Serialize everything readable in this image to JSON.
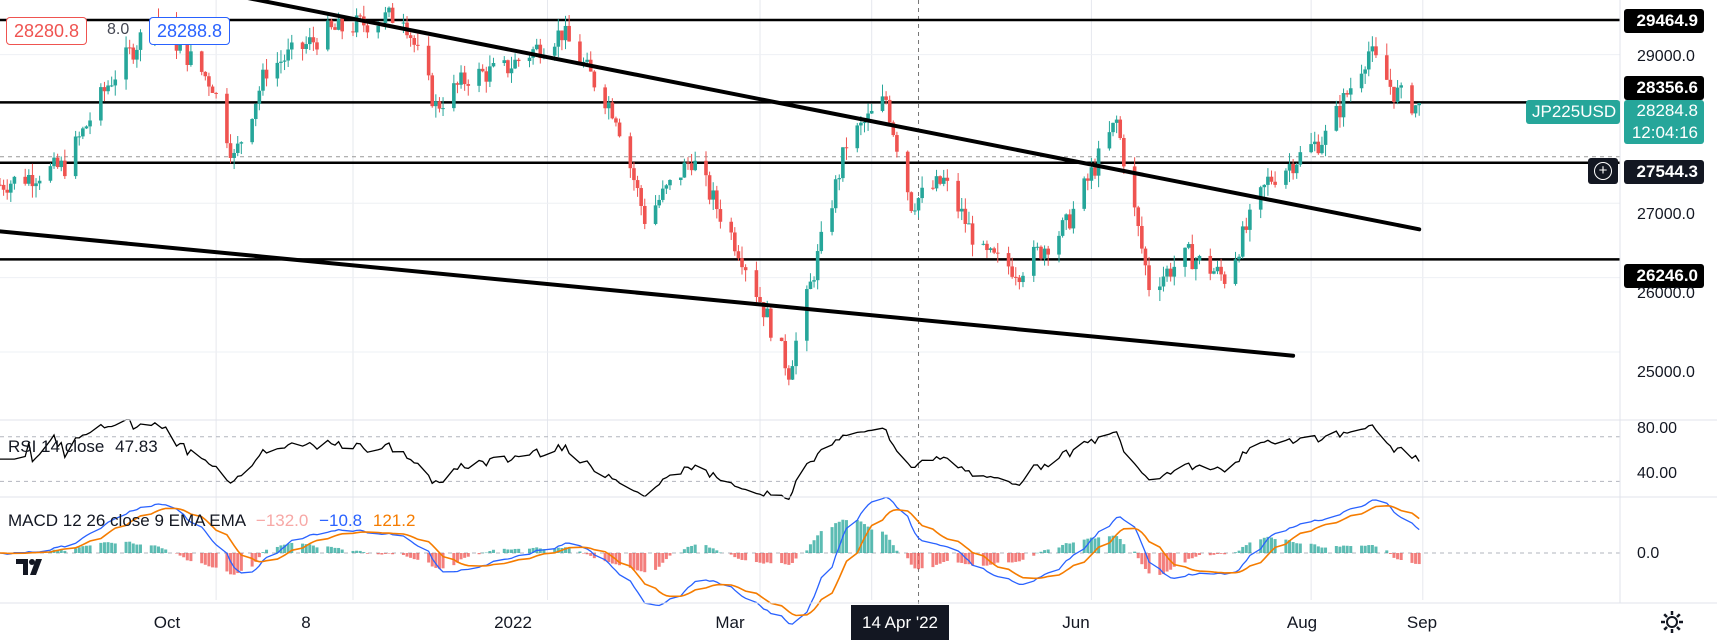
{
  "header": {
    "bid": "28280.8",
    "spread": "8.0",
    "ask": "28288.8"
  },
  "symbol_label": "JP225USD",
  "last_price": "28284.8",
  "countdown": "12:04:16",
  "crosshair_price": "27544.3",
  "crosshair_date": "14 Apr '22",
  "level_labels": [
    "29464.9",
    "28356.6",
    "26246.0"
  ],
  "rsi": {
    "label": "RSI 14 close",
    "value": "47.83",
    "axis_ticks": [
      "80.00",
      "40.00"
    ]
  },
  "macd": {
    "label": "MACD 12 26 close 9 EMA EMA",
    "hist": "−132.0",
    "macd": "−10.8",
    "signal": "121.2",
    "axis_tick": "0.0"
  },
  "colors": {
    "up": "#26a69a",
    "down": "#ef5350",
    "symbol_bg": "#26a69a",
    "rsi_line": "#000000",
    "macd_line": "#2962ff",
    "signal_line": "#f57c00",
    "hist_up": "#26a69a",
    "hist_down": "#ef5350"
  },
  "chart_data": {
    "type": "candlestick",
    "symbol": "JP225USD",
    "x_ticks": [
      "Oct",
      "8",
      "2022",
      "Mar",
      "Apr",
      "Jun",
      "Aug",
      "Sep"
    ],
    "y_ticks": [
      29000.0,
      27000.0,
      26000.0,
      25000.0
    ],
    "ylim": [
      24500,
      29800
    ],
    "horizontal_levels": [
      29464.9,
      28356.6,
      27544.3,
      26246.0
    ],
    "trendlines": [
      {
        "from": [
          "2021-09-20",
          29950
        ],
        "to": [
          "2022-08-31",
          26650
        ]
      },
      {
        "from": [
          "2021-07-27",
          26650
        ],
        "to": [
          "2022-07-27",
          24950
        ]
      }
    ],
    "price_path": [
      {
        "date": "2021-08-02",
        "close": 27250
      },
      {
        "date": "2021-08-20",
        "close": 27500
      },
      {
        "date": "2021-09-01",
        "close": 28600
      },
      {
        "date": "2021-09-14",
        "close": 29500
      },
      {
        "date": "2021-09-30",
        "close": 28600
      },
      {
        "date": "2021-10-06",
        "close": 27600
      },
      {
        "date": "2021-10-15",
        "close": 28800
      },
      {
        "date": "2021-11-01",
        "close": 29300
      },
      {
        "date": "2021-11-22",
        "close": 29550
      },
      {
        "date": "2021-12-01",
        "close": 28300
      },
      {
        "date": "2021-12-10",
        "close": 28700
      },
      {
        "date": "2021-12-20",
        "close": 28800
      },
      {
        "date": "2022-01-05",
        "close": 29300
      },
      {
        "date": "2022-01-20",
        "close": 28200
      },
      {
        "date": "2022-01-28",
        "close": 26800
      },
      {
        "date": "2022-02-10",
        "close": 27600
      },
      {
        "date": "2022-02-24",
        "close": 26300
      },
      {
        "date": "2022-03-09",
        "close": 24750
      },
      {
        "date": "2022-03-25",
        "close": 27800
      },
      {
        "date": "2022-04-05",
        "close": 28400
      },
      {
        "date": "2022-04-12",
        "close": 27000
      },
      {
        "date": "2022-04-21",
        "close": 27300
      },
      {
        "date": "2022-05-02",
        "close": 26300
      },
      {
        "date": "2022-05-12",
        "close": 26100
      },
      {
        "date": "2022-05-25",
        "close": 26700
      },
      {
        "date": "2022-06-08",
        "close": 28100
      },
      {
        "date": "2022-06-17",
        "close": 25900
      },
      {
        "date": "2022-06-28",
        "close": 26300
      },
      {
        "date": "2022-07-08",
        "close": 26000
      },
      {
        "date": "2022-07-20",
        "close": 27300
      },
      {
        "date": "2022-08-05",
        "close": 27900
      },
      {
        "date": "2022-08-17",
        "close": 29050
      },
      {
        "date": "2022-08-24",
        "close": 28500
      },
      {
        "date": "2022-08-31",
        "close": 28285
      }
    ],
    "rsi": {
      "last": 47.83,
      "ylim": [
        25,
        85
      ],
      "levels": [
        70,
        30
      ]
    },
    "macd": {
      "macd": -10.8,
      "signal": 121.2,
      "hist": -132.0
    }
  }
}
